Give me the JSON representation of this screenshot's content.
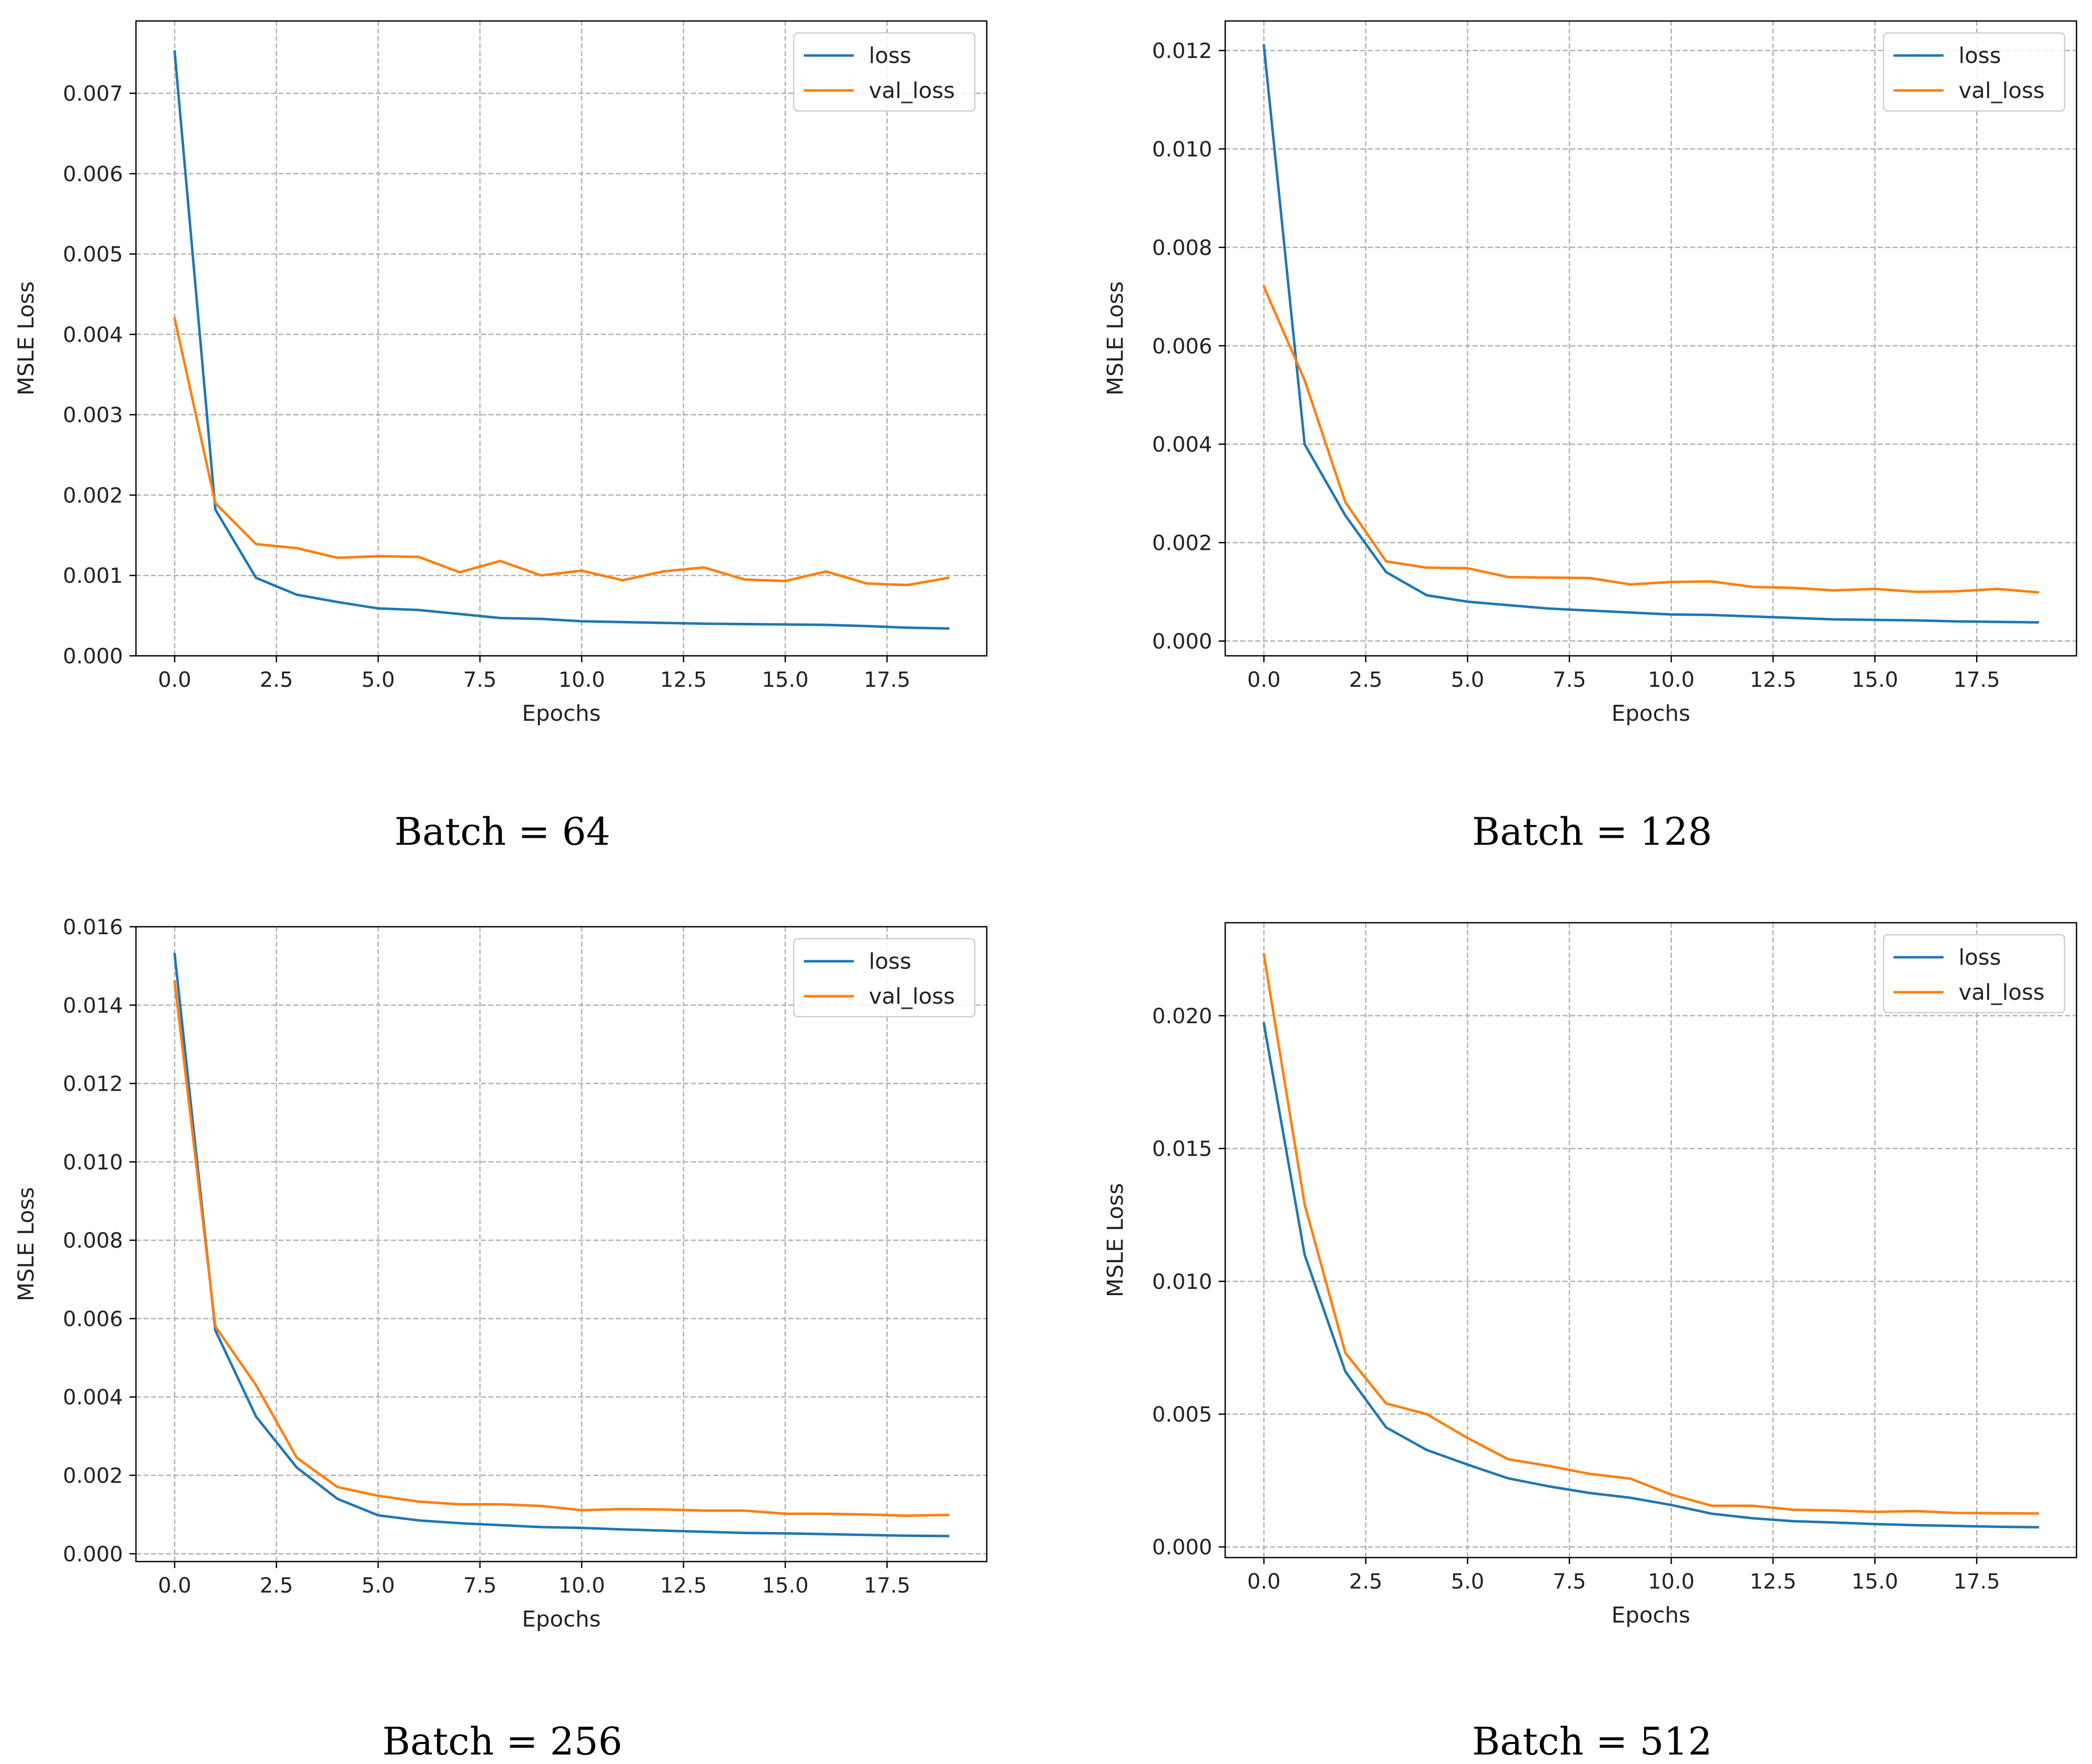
{
  "chart_data": [
    {
      "type": "line",
      "title": "",
      "caption": "Batch = 64",
      "xlabel": "Epochs",
      "ylabel": "MSLE Loss",
      "xlim": [
        -0.95,
        19.95
      ],
      "ylim": [
        0,
        0.0079
      ],
      "xticks": [
        0.0,
        2.5,
        5.0,
        7.5,
        10.0,
        12.5,
        15.0,
        17.5
      ],
      "xtick_labels": [
        "0.0",
        "2.5",
        "5.0",
        "7.5",
        "10.0",
        "12.5",
        "15.0",
        "17.5"
      ],
      "yticks": [
        0.0,
        0.001,
        0.002,
        0.003,
        0.004,
        0.005,
        0.006,
        0.007
      ],
      "ytick_labels": [
        "0.000",
        "0.001",
        "0.002",
        "0.003",
        "0.004",
        "0.005",
        "0.006",
        "0.007"
      ],
      "grid": true,
      "legend": "top-right",
      "x": [
        0,
        1,
        2,
        3,
        4,
        5,
        6,
        7,
        8,
        9,
        10,
        11,
        12,
        13,
        14,
        15,
        16,
        17,
        18,
        19
      ],
      "series": [
        {
          "name": "loss",
          "color": "#1f77b4",
          "values": [
            0.00752,
            0.00182,
            0.00097,
            0.00076,
            0.00067,
            0.00059,
            0.00057,
            0.00052,
            0.00047,
            0.00046,
            0.00043,
            0.00042,
            0.00041,
            0.0004,
            0.000395,
            0.00039,
            0.000385,
            0.00037,
            0.00035,
            0.00034
          ]
        },
        {
          "name": "val_loss",
          "color": "#ff7f0e",
          "values": [
            0.0042,
            0.0019,
            0.00139,
            0.00134,
            0.00122,
            0.00124,
            0.00123,
            0.00104,
            0.00118,
            0.001,
            0.00106,
            0.00094,
            0.00105,
            0.0011,
            0.00095,
            0.00093,
            0.00105,
            0.0009,
            0.00088,
            0.00097
          ]
        }
      ]
    },
    {
      "type": "line",
      "title": "",
      "caption": "Batch = 128",
      "xlabel": "Epochs",
      "ylabel": "MSLE Loss",
      "xlim": [
        -0.95,
        19.95
      ],
      "ylim": [
        -0.0003,
        0.0126
      ],
      "xticks": [
        0.0,
        2.5,
        5.0,
        7.5,
        10.0,
        12.5,
        15.0,
        17.5
      ],
      "xtick_labels": [
        "0.0",
        "2.5",
        "5.0",
        "7.5",
        "10.0",
        "12.5",
        "15.0",
        "17.5"
      ],
      "yticks": [
        0.0,
        0.002,
        0.004,
        0.006,
        0.008,
        0.01,
        0.012
      ],
      "ytick_labels": [
        "0.000",
        "0.002",
        "0.004",
        "0.006",
        "0.008",
        "0.010",
        "0.012"
      ],
      "grid": true,
      "legend": "top-right",
      "x": [
        0,
        1,
        2,
        3,
        4,
        5,
        6,
        7,
        8,
        9,
        10,
        11,
        12,
        13,
        14,
        15,
        16,
        17,
        18,
        19
      ],
      "series": [
        {
          "name": "loss",
          "color": "#1f77b4",
          "values": [
            0.0121,
            0.004,
            0.00255,
            0.0014,
            0.00093,
            0.0008,
            0.00073,
            0.00066,
            0.00062,
            0.00058,
            0.00054,
            0.00053,
            0.0005,
            0.00047,
            0.00044,
            0.00043,
            0.00042,
            0.0004,
            0.00039,
            0.00038
          ]
        },
        {
          "name": "val_loss",
          "color": "#ff7f0e",
          "values": [
            0.0072,
            0.0053,
            0.00282,
            0.00162,
            0.00149,
            0.00148,
            0.0013,
            0.00129,
            0.00128,
            0.00115,
            0.0012,
            0.00121,
            0.0011,
            0.00108,
            0.00103,
            0.00106,
            0.001,
            0.00101,
            0.00106,
            0.00099
          ]
        }
      ]
    },
    {
      "type": "line",
      "title": "",
      "caption": "Batch = 256",
      "xlabel": "Epochs",
      "ylabel": "MSLE Loss",
      "xlim": [
        -0.95,
        19.95
      ],
      "ylim": [
        -0.0002,
        0.016
      ],
      "xticks": [
        0.0,
        2.5,
        5.0,
        7.5,
        10.0,
        12.5,
        15.0,
        17.5
      ],
      "xtick_labels": [
        "0.0",
        "2.5",
        "5.0",
        "7.5",
        "10.0",
        "12.5",
        "15.0",
        "17.5"
      ],
      "yticks": [
        0.0,
        0.002,
        0.004,
        0.006,
        0.008,
        0.01,
        0.012,
        0.014,
        0.016
      ],
      "ytick_labels": [
        "0.000",
        "0.002",
        "0.004",
        "0.006",
        "0.008",
        "0.010",
        "0.012",
        "0.014",
        "0.016"
      ],
      "grid": true,
      "legend": "top-right",
      "x": [
        0,
        1,
        2,
        3,
        4,
        5,
        6,
        7,
        8,
        9,
        10,
        11,
        12,
        13,
        14,
        15,
        16,
        17,
        18,
        19
      ],
      "series": [
        {
          "name": "loss",
          "color": "#1f77b4",
          "values": [
            0.0153,
            0.0057,
            0.0035,
            0.0022,
            0.0014,
            0.00098,
            0.00085,
            0.00078,
            0.00073,
            0.00068,
            0.00066,
            0.00062,
            0.00059,
            0.00056,
            0.00053,
            0.00052,
            0.0005,
            0.00048,
            0.00046,
            0.00045
          ]
        },
        {
          "name": "val_loss",
          "color": "#ff7f0e",
          "values": [
            0.0146,
            0.0058,
            0.0043,
            0.00245,
            0.0017,
            0.00148,
            0.00133,
            0.00126,
            0.00126,
            0.00122,
            0.00111,
            0.00114,
            0.00113,
            0.0011,
            0.0011,
            0.00102,
            0.00102,
            0.001,
            0.00097,
            0.00099
          ]
        }
      ]
    },
    {
      "type": "line",
      "title": "",
      "caption": "Batch = 512",
      "xlabel": "Epochs",
      "ylabel": "MSLE Loss",
      "xlim": [
        -0.95,
        19.95
      ],
      "ylim": [
        -0.0004,
        0.0235
      ],
      "xticks": [
        0.0,
        2.5,
        5.0,
        7.5,
        10.0,
        12.5,
        15.0,
        17.5
      ],
      "xtick_labels": [
        "0.0",
        "2.5",
        "5.0",
        "7.5",
        "10.0",
        "12.5",
        "15.0",
        "17.5"
      ],
      "yticks": [
        0.0,
        0.005,
        0.01,
        0.015,
        0.02
      ],
      "ytick_labels": [
        "0.000",
        "0.005",
        "0.010",
        "0.015",
        "0.020"
      ],
      "grid": true,
      "legend": "top-right",
      "x": [
        0,
        1,
        2,
        3,
        4,
        5,
        6,
        7,
        8,
        9,
        10,
        11,
        12,
        13,
        14,
        15,
        16,
        17,
        18,
        19
      ],
      "series": [
        {
          "name": "loss",
          "color": "#1f77b4",
          "values": [
            0.0197,
            0.011,
            0.0066,
            0.0045,
            0.00365,
            0.0031,
            0.00258,
            0.00228,
            0.00203,
            0.00185,
            0.00158,
            0.00125,
            0.00108,
            0.00097,
            0.00092,
            0.00086,
            0.00082,
            0.00079,
            0.00076,
            0.00074
          ]
        },
        {
          "name": "val_loss",
          "color": "#ff7f0e",
          "values": [
            0.0223,
            0.0129,
            0.0073,
            0.0054,
            0.005,
            0.0041,
            0.0033,
            0.00305,
            0.00275,
            0.00257,
            0.00197,
            0.00155,
            0.00155,
            0.0014,
            0.00137,
            0.00132,
            0.00135,
            0.00128,
            0.00127,
            0.00126
          ]
        }
      ]
    }
  ]
}
